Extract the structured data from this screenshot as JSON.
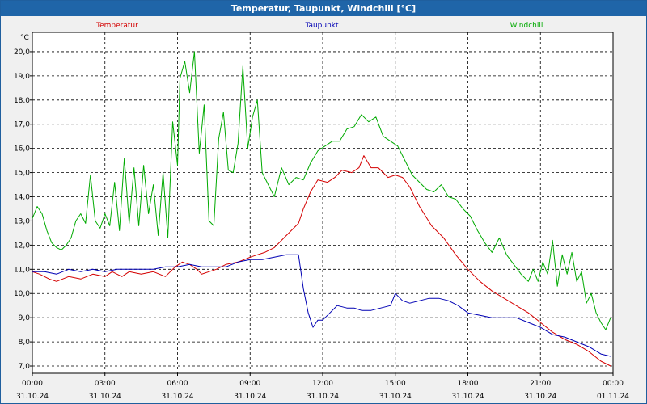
{
  "window": {
    "title": "Temperatur, Taupunkt, Windchill [°C]"
  },
  "chart_data": {
    "type": "line",
    "title": "Temperatur, Taupunkt, Windchill [°C]",
    "ylabel": "°C",
    "ylim": [
      6.7,
      20.8
    ],
    "xlim": [
      0,
      24
    ],
    "yticks": [
      7.0,
      8.0,
      9.0,
      10.0,
      11.0,
      12.0,
      13.0,
      14.0,
      15.0,
      16.0,
      17.0,
      18.0,
      19.0,
      20.0
    ],
    "ytick_labels": [
      "7,0",
      "8,0",
      "9,0",
      "10,0",
      "11,0",
      "12,0",
      "13,0",
      "14,0",
      "15,0",
      "16,0",
      "17,0",
      "18,0",
      "19,0",
      "20,0"
    ],
    "xticks": [
      0,
      3,
      6,
      9,
      12,
      15,
      18,
      21,
      24
    ],
    "xtick_times": [
      "00:00",
      "03:00",
      "06:00",
      "09:00",
      "12:00",
      "15:00",
      "18:00",
      "21:00",
      "00:00"
    ],
    "xtick_dates": [
      "31.10.24",
      "31.10.24",
      "31.10.24",
      "31.10.24",
      "31.10.24",
      "31.10.24",
      "31.10.24",
      "31.10.24",
      "01.11.24"
    ],
    "grid": true,
    "series": [
      {
        "name": "Temperatur",
        "color": "#d40000",
        "x": [
          0.0,
          0.3,
          0.7,
          1.0,
          1.5,
          2.0,
          2.5,
          3.0,
          3.3,
          3.7,
          4.0,
          4.5,
          5.0,
          5.5,
          5.9,
          6.2,
          6.5,
          6.8,
          7.0,
          7.3,
          7.6,
          8.0,
          8.5,
          9.0,
          9.3,
          9.6,
          10.0,
          10.5,
          11.0,
          11.2,
          11.5,
          11.8,
          12.2,
          12.5,
          12.8,
          13.2,
          13.5,
          13.7,
          14.0,
          14.3,
          14.7,
          15.0,
          15.3,
          15.6,
          16.0,
          16.5,
          17.0,
          17.5,
          18.0,
          18.5,
          19.0,
          19.5,
          20.0,
          20.5,
          21.0,
          21.5,
          22.0,
          22.5,
          23.0,
          23.5,
          23.9
        ],
        "values": [
          10.9,
          10.8,
          10.6,
          10.5,
          10.7,
          10.6,
          10.8,
          10.7,
          10.9,
          10.7,
          10.9,
          10.8,
          10.9,
          10.7,
          11.1,
          11.3,
          11.2,
          11.0,
          10.8,
          10.9,
          11.0,
          11.2,
          11.3,
          11.5,
          11.6,
          11.7,
          11.9,
          12.4,
          12.9,
          13.5,
          14.2,
          14.7,
          14.6,
          14.8,
          15.1,
          15.0,
          15.2,
          15.7,
          15.2,
          15.2,
          14.8,
          14.9,
          14.8,
          14.4,
          13.6,
          12.8,
          12.3,
          11.6,
          11.0,
          10.5,
          10.1,
          9.8,
          9.5,
          9.2,
          8.8,
          8.4,
          8.1,
          7.9,
          7.6,
          7.2,
          7.0
        ]
      },
      {
        "name": "Taupunkt",
        "color": "#0000b4",
        "x": [
          0.0,
          0.5,
          1.0,
          1.5,
          2.0,
          2.5,
          3.0,
          3.5,
          4.0,
          4.5,
          5.0,
          5.5,
          6.0,
          6.5,
          7.0,
          7.5,
          8.0,
          8.5,
          9.0,
          9.5,
          10.0,
          10.5,
          11.0,
          11.2,
          11.4,
          11.6,
          11.8,
          12.0,
          12.3,
          12.6,
          13.0,
          13.3,
          13.6,
          14.0,
          14.4,
          14.8,
          15.0,
          15.3,
          15.6,
          16.0,
          16.4,
          16.8,
          17.2,
          17.6,
          18.0,
          18.5,
          19.0,
          19.5,
          20.0,
          20.5,
          21.0,
          21.5,
          22.0,
          22.5,
          23.0,
          23.5,
          23.9
        ],
        "values": [
          10.9,
          10.9,
          10.8,
          11.0,
          10.9,
          11.0,
          10.9,
          11.0,
          11.0,
          11.0,
          11.0,
          11.1,
          11.1,
          11.2,
          11.1,
          11.1,
          11.1,
          11.3,
          11.4,
          11.4,
          11.5,
          11.6,
          11.6,
          10.2,
          9.2,
          8.6,
          8.9,
          8.9,
          9.2,
          9.5,
          9.4,
          9.4,
          9.3,
          9.3,
          9.4,
          9.5,
          10.0,
          9.7,
          9.6,
          9.7,
          9.8,
          9.8,
          9.7,
          9.5,
          9.2,
          9.1,
          9.0,
          9.0,
          9.0,
          8.8,
          8.6,
          8.3,
          8.2,
          8.0,
          7.8,
          7.5,
          7.4
        ]
      },
      {
        "name": "Windchill",
        "color": "#00aa00",
        "x": [
          0.0,
          0.2,
          0.4,
          0.6,
          0.8,
          1.0,
          1.2,
          1.4,
          1.6,
          1.8,
          2.0,
          2.2,
          2.4,
          2.6,
          2.8,
          3.0,
          3.2,
          3.4,
          3.6,
          3.8,
          4.0,
          4.2,
          4.4,
          4.6,
          4.8,
          5.0,
          5.2,
          5.4,
          5.6,
          5.8,
          6.0,
          6.1,
          6.3,
          6.5,
          6.7,
          6.9,
          7.1,
          7.3,
          7.5,
          7.7,
          7.9,
          8.1,
          8.3,
          8.5,
          8.7,
          8.9,
          9.1,
          9.3,
          9.5,
          9.7,
          10.0,
          10.3,
          10.6,
          10.9,
          11.2,
          11.5,
          11.8,
          12.1,
          12.4,
          12.7,
          13.0,
          13.3,
          13.6,
          13.9,
          14.2,
          14.5,
          14.8,
          15.1,
          15.4,
          15.7,
          16.0,
          16.3,
          16.6,
          16.9,
          17.2,
          17.5,
          17.8,
          18.1,
          18.4,
          18.7,
          19.0,
          19.3,
          19.6,
          19.9,
          20.2,
          20.5,
          20.7,
          20.9,
          21.1,
          21.3,
          21.5,
          21.7,
          21.9,
          22.1,
          22.3,
          22.5,
          22.7,
          22.9,
          23.1,
          23.3,
          23.5,
          23.7,
          23.9
        ],
        "values": [
          13.1,
          13.6,
          13.3,
          12.6,
          12.1,
          11.9,
          11.8,
          12.0,
          12.3,
          13.0,
          13.3,
          12.9,
          14.9,
          13.0,
          12.7,
          13.3,
          12.8,
          14.6,
          12.6,
          15.6,
          12.9,
          15.2,
          12.8,
          15.3,
          13.3,
          14.5,
          12.4,
          15.0,
          12.3,
          17.1,
          15.3,
          18.9,
          19.6,
          18.3,
          20.0,
          15.8,
          17.8,
          13.0,
          12.8,
          16.4,
          17.5,
          15.1,
          15.0,
          16.2,
          19.4,
          16.0,
          17.3,
          18.0,
          15.0,
          14.6,
          14.0,
          15.2,
          14.5,
          14.8,
          14.7,
          15.4,
          15.9,
          16.1,
          16.3,
          16.3,
          16.8,
          16.9,
          17.4,
          17.1,
          17.3,
          16.5,
          16.3,
          16.1,
          15.5,
          14.9,
          14.6,
          14.3,
          14.2,
          14.5,
          14.0,
          13.9,
          13.5,
          13.2,
          12.6,
          12.1,
          11.7,
          12.3,
          11.6,
          11.2,
          10.8,
          10.5,
          11.0,
          10.5,
          11.3,
          10.8,
          12.2,
          10.3,
          11.6,
          10.8,
          11.7,
          10.5,
          10.9,
          9.6,
          10.0,
          9.2,
          8.8,
          8.5,
          9.0
        ]
      }
    ]
  }
}
